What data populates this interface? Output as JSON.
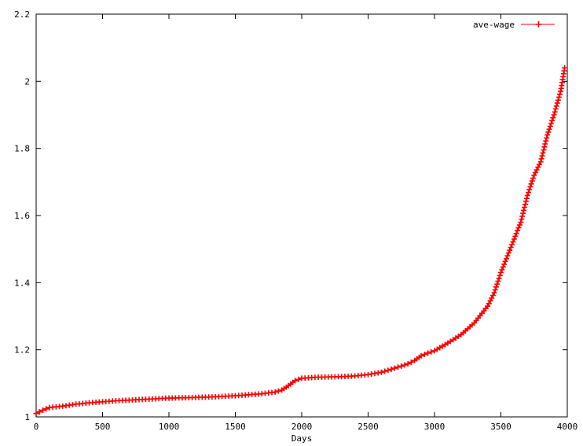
{
  "chart_data": {
    "type": "line",
    "title": "",
    "xlabel": "Days",
    "ylabel": "",
    "xlim": [
      0,
      4000
    ],
    "ylim": [
      1,
      2.2
    ],
    "xticks": [
      "0",
      "500",
      "1000",
      "1500",
      "2000",
      "2500",
      "3000",
      "3500",
      "4000"
    ],
    "yticks": [
      "1",
      "1.2",
      "1.4",
      "1.6",
      "1.8",
      "2",
      "2.2"
    ],
    "grid": false,
    "legend_position": "top-right",
    "series": [
      {
        "name": "ave-wage",
        "color": "#ff0000",
        "marker": "plus",
        "points": [
          [
            0,
            1.01
          ],
          [
            50,
            1.02
          ],
          [
            100,
            1.028
          ],
          [
            200,
            1.032
          ],
          [
            300,
            1.038
          ],
          [
            400,
            1.042
          ],
          [
            500,
            1.045
          ],
          [
            600,
            1.048
          ],
          [
            700,
            1.05
          ],
          [
            800,
            1.052
          ],
          [
            900,
            1.054
          ],
          [
            1000,
            1.056
          ],
          [
            1100,
            1.057
          ],
          [
            1200,
            1.058
          ],
          [
            1300,
            1.059
          ],
          [
            1400,
            1.061
          ],
          [
            1500,
            1.063
          ],
          [
            1600,
            1.066
          ],
          [
            1700,
            1.069
          ],
          [
            1800,
            1.074
          ],
          [
            1850,
            1.08
          ],
          [
            1900,
            1.093
          ],
          [
            1950,
            1.108
          ],
          [
            2000,
            1.115
          ],
          [
            2100,
            1.118
          ],
          [
            2200,
            1.119
          ],
          [
            2300,
            1.12
          ],
          [
            2400,
            1.122
          ],
          [
            2500,
            1.126
          ],
          [
            2600,
            1.133
          ],
          [
            2700,
            1.145
          ],
          [
            2800,
            1.158
          ],
          [
            2850,
            1.168
          ],
          [
            2900,
            1.182
          ],
          [
            2950,
            1.19
          ],
          [
            3000,
            1.197
          ],
          [
            3100,
            1.22
          ],
          [
            3200,
            1.245
          ],
          [
            3300,
            1.28
          ],
          [
            3400,
            1.33
          ],
          [
            3450,
            1.37
          ],
          [
            3500,
            1.43
          ],
          [
            3550,
            1.48
          ],
          [
            3600,
            1.53
          ],
          [
            3650,
            1.58
          ],
          [
            3700,
            1.66
          ],
          [
            3750,
            1.72
          ],
          [
            3800,
            1.76
          ],
          [
            3850,
            1.84
          ],
          [
            3900,
            1.9
          ],
          [
            3950,
            1.97
          ],
          [
            3980,
            2.04
          ]
        ]
      }
    ]
  }
}
